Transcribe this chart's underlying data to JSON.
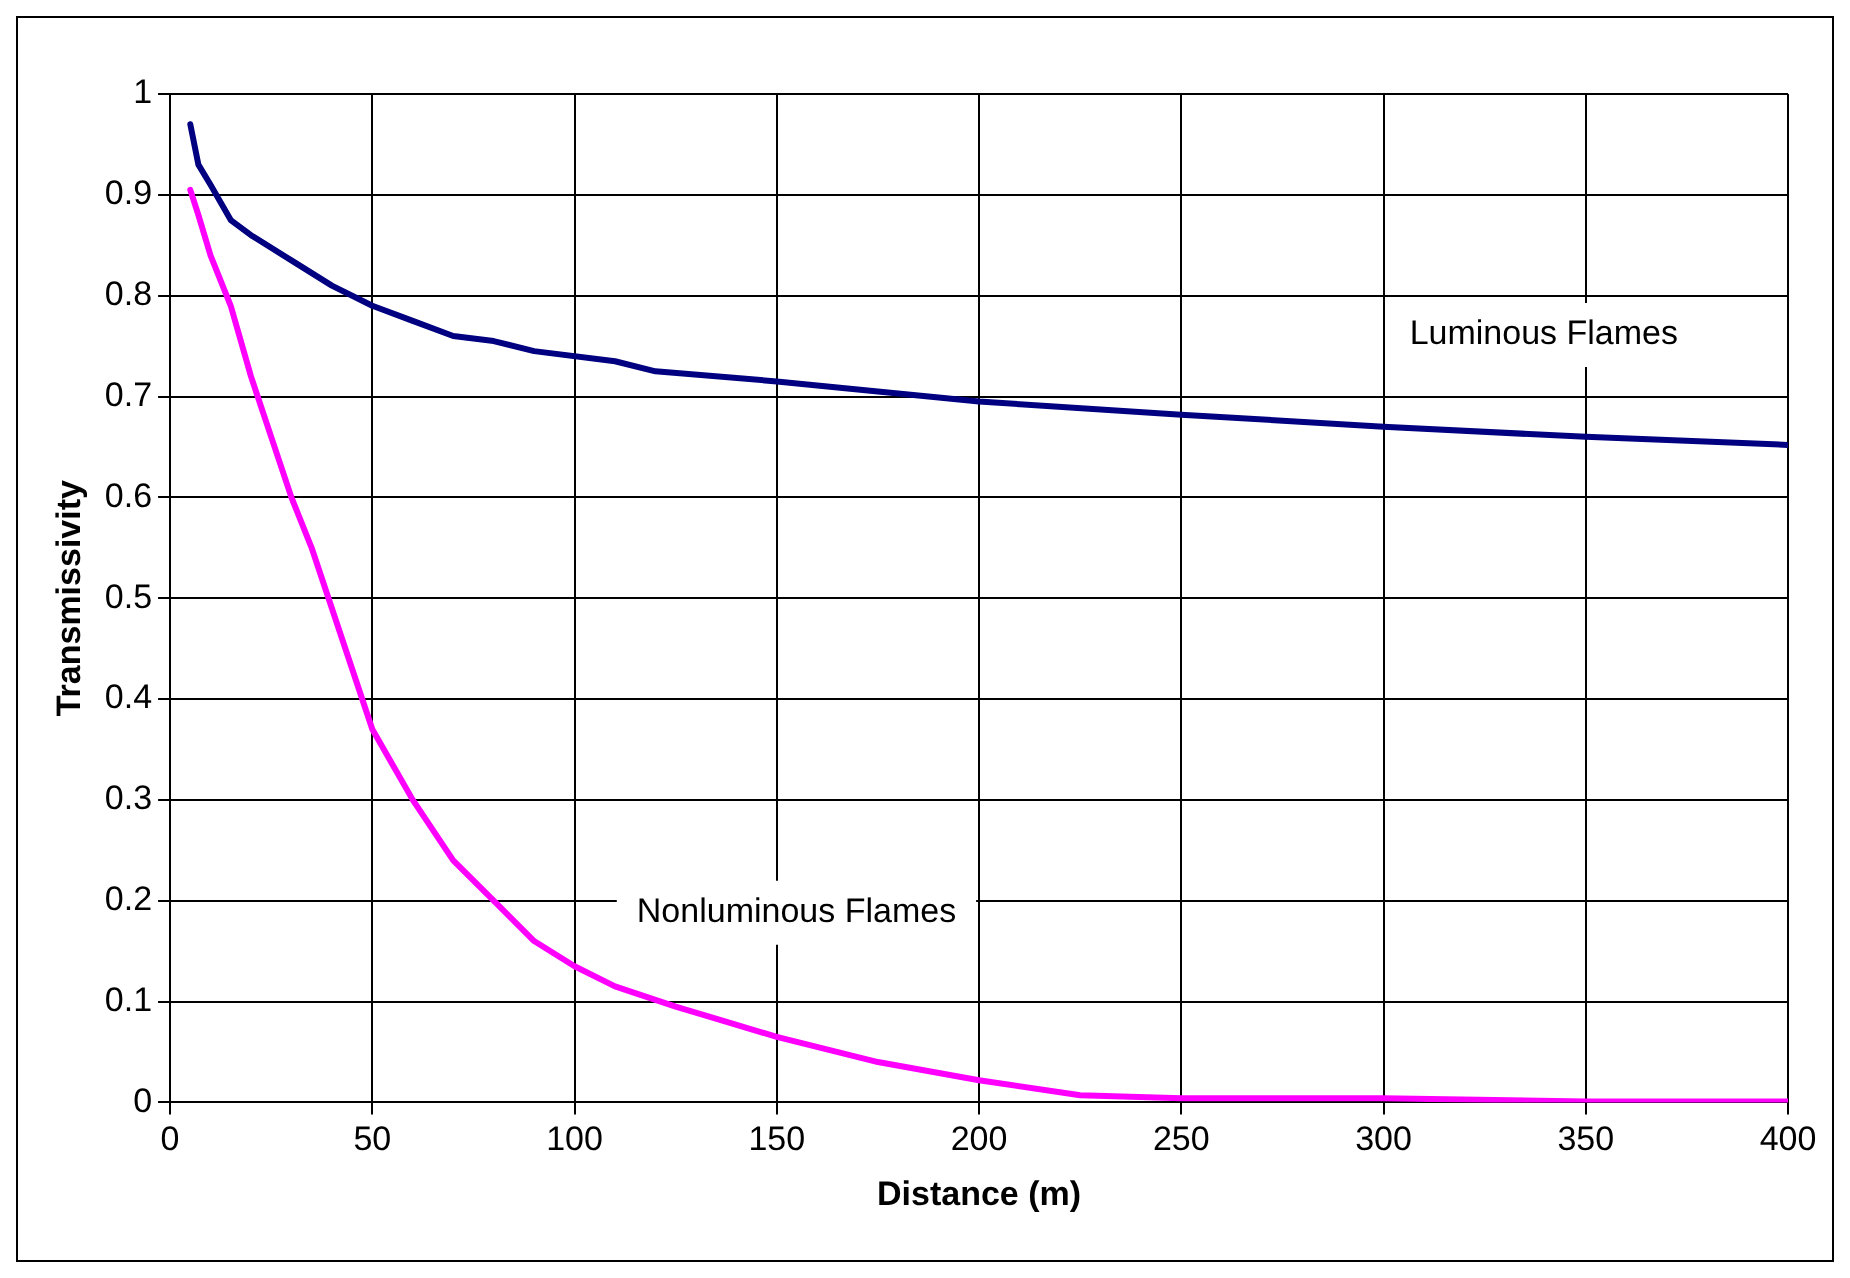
{
  "chart_data": {
    "type": "line",
    "xlabel": "Distance (m)",
    "ylabel": "Transmissivity",
    "xlim": [
      0,
      400
    ],
    "xticks": [
      0,
      50,
      100,
      150,
      200,
      250,
      300,
      350,
      400
    ],
    "ylim": [
      0,
      1
    ],
    "yticks": [
      0,
      0.1,
      0.2,
      0.3,
      0.4,
      0.5,
      0.6,
      0.7,
      0.8,
      0.9,
      1
    ],
    "grid": true,
    "legend": false,
    "marker": "none",
    "line_style": "solid",
    "series": [
      {
        "name": "Luminous Flames",
        "color": "#000080",
        "x": [
          5,
          7,
          10,
          15,
          20,
          30,
          40,
          50,
          60,
          70,
          80,
          90,
          110,
          120,
          150,
          175,
          200,
          250,
          300,
          350,
          400
        ],
        "values": [
          0.97,
          0.93,
          0.91,
          0.875,
          0.86,
          0.835,
          0.81,
          0.79,
          0.775,
          0.76,
          0.755,
          0.745,
          0.735,
          0.725,
          0.715,
          0.705,
          0.695,
          0.682,
          0.67,
          0.66,
          0.652
        ]
      },
      {
        "name": "Nonluminous Flames",
        "color": "#ff00ff",
        "x": [
          5,
          7,
          10,
          15,
          20,
          25,
          30,
          35,
          40,
          45,
          50,
          60,
          70,
          80,
          90,
          100,
          110,
          125,
          150,
          175,
          200,
          225,
          250,
          300,
          350,
          400
        ],
        "values": [
          0.905,
          0.88,
          0.84,
          0.79,
          0.72,
          0.66,
          0.6,
          0.55,
          0.49,
          0.43,
          0.37,
          0.3,
          0.24,
          0.2,
          0.16,
          0.135,
          0.115,
          0.095,
          0.065,
          0.04,
          0.022,
          0.007,
          0.004,
          0.004,
          0.001,
          0.001
        ]
      }
    ]
  }
}
